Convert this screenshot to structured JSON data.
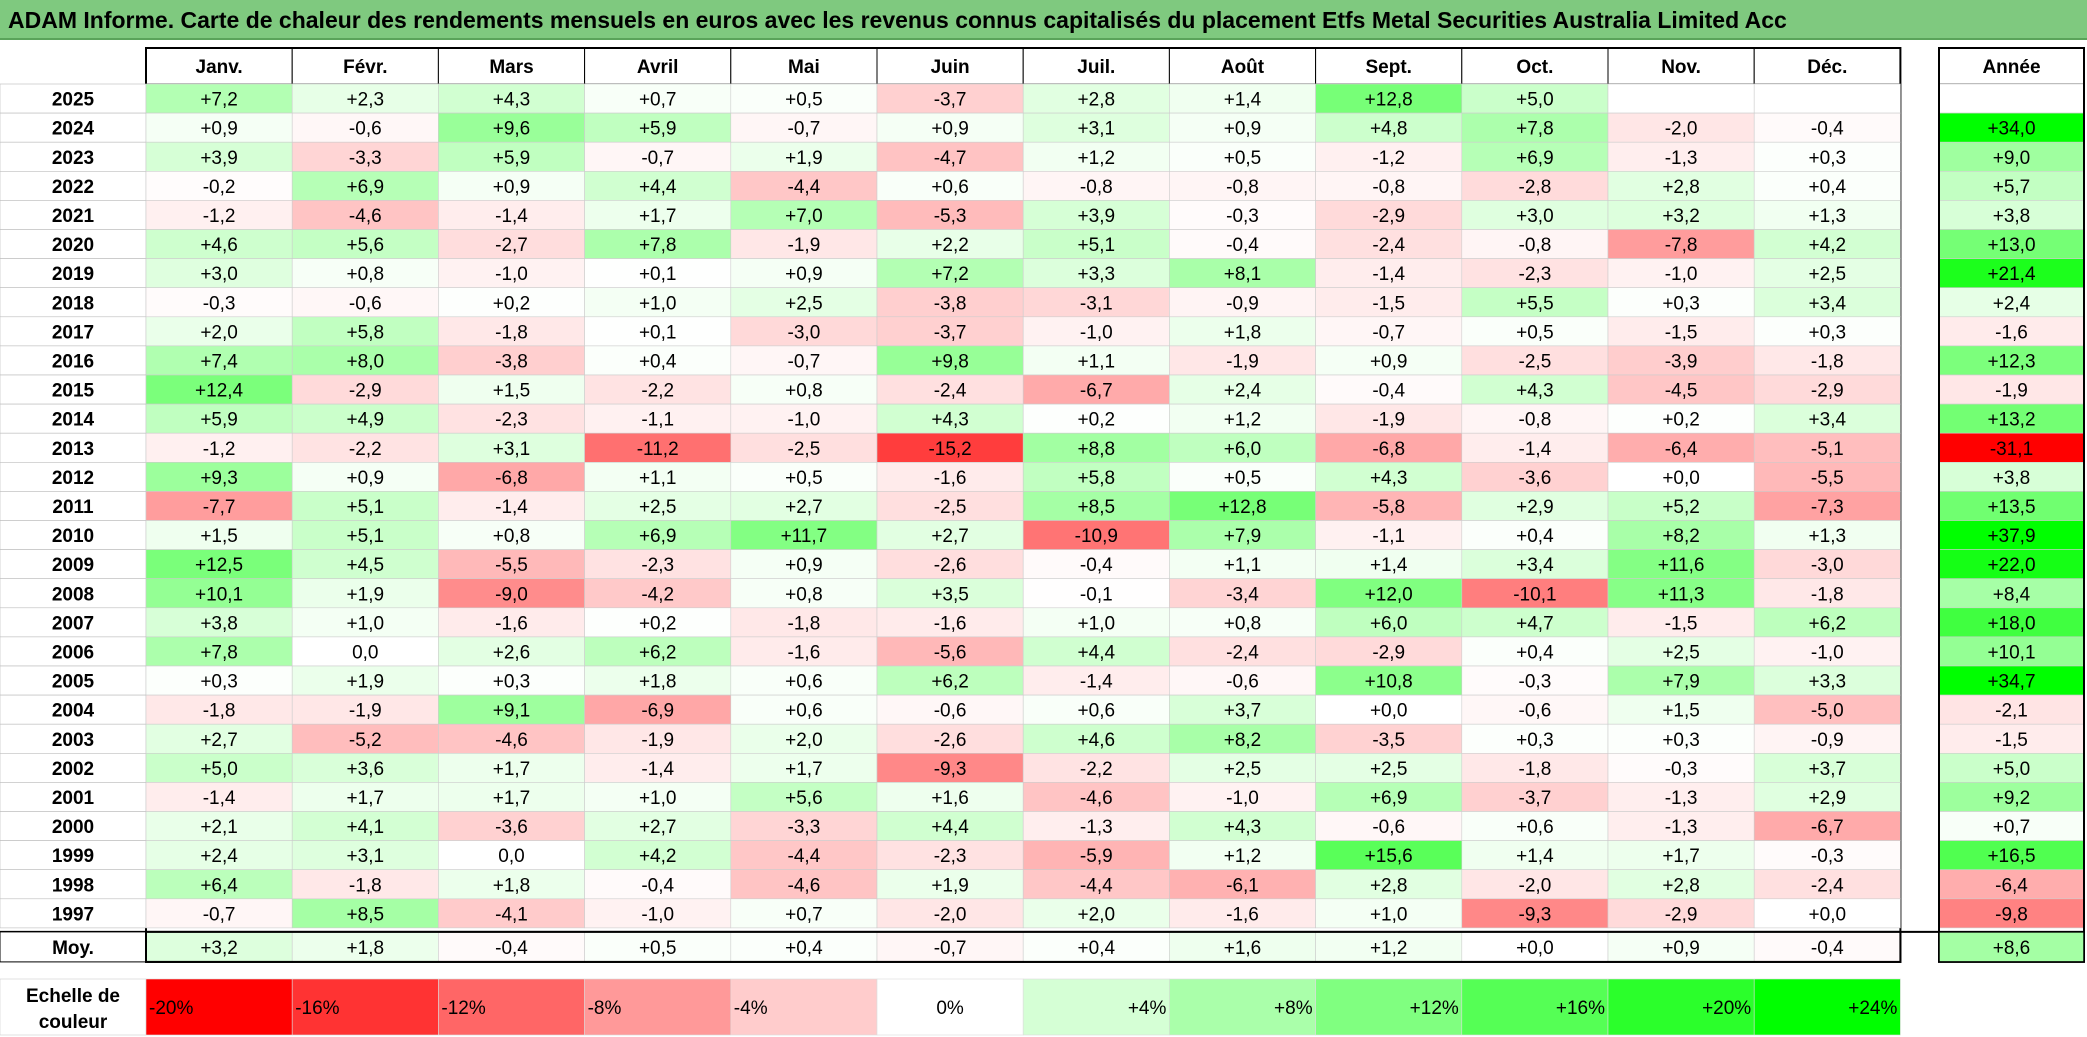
{
  "title": "ADAM Informe. Carte de chaleur des rendements mensuels en euros avec les revenus connus capitalisés du placement Etfs Metal Securities Australia Limited Acc",
  "chart_data": {
    "type": "heatmap",
    "months": [
      "Janv.",
      "Févr.",
      "Mars",
      "Avril",
      "Mai",
      "Juin",
      "Juil.",
      "Août",
      "Sept.",
      "Oct.",
      "Nov.",
      "Déc."
    ],
    "year_header": "Année",
    "rows": [
      {
        "year": "2025",
        "values": [
          "+7,2",
          "+2,3",
          "+4,3",
          "+0,7",
          "+0,5",
          "-3,7",
          "+2,8",
          "+1,4",
          "+12,8",
          "+5,0",
          "",
          ""
        ],
        "annual": ""
      },
      {
        "year": "2024",
        "values": [
          "+0,9",
          "-0,6",
          "+9,6",
          "+5,9",
          "-0,7",
          "+0,9",
          "+3,1",
          "+0,9",
          "+4,8",
          "+7,8",
          "-2,0",
          "-0,4"
        ],
        "annual": "+34,0"
      },
      {
        "year": "2023",
        "values": [
          "+3,9",
          "-3,3",
          "+5,9",
          "-0,7",
          "+1,9",
          "-4,7",
          "+1,2",
          "+0,5",
          "-1,2",
          "+6,9",
          "-1,3",
          "+0,3"
        ],
        "annual": "+9,0"
      },
      {
        "year": "2022",
        "values": [
          "-0,2",
          "+6,9",
          "+0,9",
          "+4,4",
          "-4,4",
          "+0,6",
          "-0,8",
          "-0,8",
          "-0,8",
          "-2,8",
          "+2,8",
          "+0,4"
        ],
        "annual": "+5,7"
      },
      {
        "year": "2021",
        "values": [
          "-1,2",
          "-4,6",
          "-1,4",
          "+1,7",
          "+7,0",
          "-5,3",
          "+3,9",
          "-0,3",
          "-2,9",
          "+3,0",
          "+3,2",
          "+1,3"
        ],
        "annual": "+3,8"
      },
      {
        "year": "2020",
        "values": [
          "+4,6",
          "+5,6",
          "-2,7",
          "+7,8",
          "-1,9",
          "+2,2",
          "+5,1",
          "-0,4",
          "-2,4",
          "-0,8",
          "-7,8",
          "+4,2"
        ],
        "annual": "+13,0"
      },
      {
        "year": "2019",
        "values": [
          "+3,0",
          "+0,8",
          "-1,0",
          "+0,1",
          "+0,9",
          "+7,2",
          "+3,3",
          "+8,1",
          "-1,4",
          "-2,3",
          "-1,0",
          "+2,5"
        ],
        "annual": "+21,4"
      },
      {
        "year": "2018",
        "values": [
          "-0,3",
          "-0,6",
          "+0,2",
          "+1,0",
          "+2,5",
          "-3,8",
          "-3,1",
          "-0,9",
          "-1,5",
          "+5,5",
          "+0,3",
          "+3,4"
        ],
        "annual": "+2,4"
      },
      {
        "year": "2017",
        "values": [
          "+2,0",
          "+5,8",
          "-1,8",
          "+0,1",
          "-3,0",
          "-3,7",
          "-1,0",
          "+1,8",
          "-0,7",
          "+0,5",
          "-1,5",
          "+0,3"
        ],
        "annual": "-1,6"
      },
      {
        "year": "2016",
        "values": [
          "+7,4",
          "+8,0",
          "-3,8",
          "+0,4",
          "-0,7",
          "+9,8",
          "+1,1",
          "-1,9",
          "+0,9",
          "-2,5",
          "-3,9",
          "-1,8"
        ],
        "annual": "+12,3"
      },
      {
        "year": "2015",
        "values": [
          "+12,4",
          "-2,9",
          "+1,5",
          "-2,2",
          "+0,8",
          "-2,4",
          "-6,7",
          "+2,4",
          "-0,4",
          "+4,3",
          "-4,5",
          "-2,9"
        ],
        "annual": "-1,9"
      },
      {
        "year": "2014",
        "values": [
          "+5,9",
          "+4,9",
          "-2,3",
          "-1,1",
          "-1,0",
          "+4,3",
          "+0,2",
          "+1,2",
          "-1,9",
          "-0,8",
          "+0,2",
          "+3,4"
        ],
        "annual": "+13,2"
      },
      {
        "year": "2013",
        "values": [
          "-1,2",
          "-2,2",
          "+3,1",
          "-11,2",
          "-2,5",
          "-15,2",
          "+8,8",
          "+6,0",
          "-6,8",
          "-1,4",
          "-6,4",
          "-5,1"
        ],
        "annual": "-31,1"
      },
      {
        "year": "2012",
        "values": [
          "+9,3",
          "+0,9",
          "-6,8",
          "+1,1",
          "+0,5",
          "-1,6",
          "+5,8",
          "+0,5",
          "+4,3",
          "-3,6",
          "+0,0",
          "-5,5"
        ],
        "annual": "+3,8"
      },
      {
        "year": "2011",
        "values": [
          "-7,7",
          "+5,1",
          "-1,4",
          "+2,5",
          "+2,7",
          "-2,5",
          "+8,5",
          "+12,8",
          "-5,8",
          "+2,9",
          "+5,2",
          "-7,3"
        ],
        "annual": "+13,5"
      },
      {
        "year": "2010",
        "values": [
          "+1,5",
          "+5,1",
          "+0,8",
          "+6,9",
          "+11,7",
          "+2,7",
          "-10,9",
          "+7,9",
          "-1,1",
          "+0,4",
          "+8,2",
          "+1,3"
        ],
        "annual": "+37,9"
      },
      {
        "year": "2009",
        "values": [
          "+12,5",
          "+4,5",
          "-5,5",
          "-2,3",
          "+0,9",
          "-2,6",
          "-0,4",
          "+1,1",
          "+1,4",
          "+3,4",
          "+11,6",
          "-3,0"
        ],
        "annual": "+22,0"
      },
      {
        "year": "2008",
        "values": [
          "+10,1",
          "+1,9",
          "-9,0",
          "-4,2",
          "+0,8",
          "+3,5",
          "-0,1",
          "-3,4",
          "+12,0",
          "-10,1",
          "+11,3",
          "-1,8"
        ],
        "annual": "+8,4"
      },
      {
        "year": "2007",
        "values": [
          "+3,8",
          "+1,0",
          "-1,6",
          "+0,2",
          "-1,8",
          "-1,6",
          "+1,0",
          "+0,8",
          "+6,0",
          "+4,7",
          "-1,5",
          "+6,2"
        ],
        "annual": "+18,0"
      },
      {
        "year": "2006",
        "values": [
          "+7,8",
          "0,0",
          "+2,6",
          "+6,2",
          "-1,6",
          "-5,6",
          "+4,4",
          "-2,4",
          "-2,9",
          "+0,4",
          "+2,5",
          "-1,0"
        ],
        "annual": "+10,1"
      },
      {
        "year": "2005",
        "values": [
          "+0,3",
          "+1,9",
          "+0,3",
          "+1,8",
          "+0,6",
          "+6,2",
          "-1,4",
          "-0,6",
          "+10,8",
          "-0,3",
          "+7,9",
          "+3,3"
        ],
        "annual": "+34,7"
      },
      {
        "year": "2004",
        "values": [
          "-1,8",
          "-1,9",
          "+9,1",
          "-6,9",
          "+0,6",
          "-0,6",
          "+0,6",
          "+3,7",
          "+0,0",
          "-0,6",
          "+1,5",
          "-5,0"
        ],
        "annual": "-2,1"
      },
      {
        "year": "2003",
        "values": [
          "+2,7",
          "-5,2",
          "-4,6",
          "-1,9",
          "+2,0",
          "-2,6",
          "+4,6",
          "+8,2",
          "-3,5",
          "+0,3",
          "+0,3",
          "-0,9"
        ],
        "annual": "-1,5"
      },
      {
        "year": "2002",
        "values": [
          "+5,0",
          "+3,6",
          "+1,7",
          "-1,4",
          "+1,7",
          "-9,3",
          "-2,2",
          "+2,5",
          "+2,5",
          "-1,8",
          "-0,3",
          "+3,7"
        ],
        "annual": "+5,0"
      },
      {
        "year": "2001",
        "values": [
          "-1,4",
          "+1,7",
          "+1,7",
          "+1,0",
          "+5,6",
          "+1,6",
          "-4,6",
          "-1,0",
          "+6,9",
          "-3,7",
          "-1,3",
          "+2,9"
        ],
        "annual": "+9,2"
      },
      {
        "year": "2000",
        "values": [
          "+2,1",
          "+4,1",
          "-3,6",
          "+2,7",
          "-3,3",
          "+4,4",
          "-1,3",
          "+4,3",
          "-0,6",
          "+0,6",
          "-1,3",
          "-6,7"
        ],
        "annual": "+0,7"
      },
      {
        "year": "1999",
        "values": [
          "+2,4",
          "+3,1",
          "0,0",
          "+4,2",
          "-4,4",
          "-2,3",
          "-5,9",
          "+1,2",
          "+15,6",
          "+1,4",
          "+1,7",
          "-0,3"
        ],
        "annual": "+16,5"
      },
      {
        "year": "1998",
        "values": [
          "+6,4",
          "-1,8",
          "+1,8",
          "-0,4",
          "-4,6",
          "+1,9",
          "-4,4",
          "-6,1",
          "+2,8",
          "-2,0",
          "+2,8",
          "-2,4"
        ],
        "annual": "-6,4"
      },
      {
        "year": "1997",
        "values": [
          "-0,7",
          "+8,5",
          "-4,1",
          "-1,0",
          "+0,7",
          "-2,0",
          "+2,0",
          "-1,6",
          "+1,0",
          "-9,3",
          "-2,9",
          "+0,0"
        ],
        "annual": "-9,8"
      }
    ],
    "average": {
      "label": "Moy.",
      "values": [
        "+3,2",
        "+1,8",
        "-0,4",
        "+0,5",
        "+0,4",
        "-0,7",
        "+0,4",
        "+1,6",
        "+1,2",
        "+0,0",
        "+0,9",
        "-0,4"
      ],
      "annual": "+8,6"
    },
    "scale": {
      "label_line1": "Echelle de",
      "label_line2": "couleur",
      "items": [
        {
          "label": "-20%",
          "value": -20
        },
        {
          "label": "-16%",
          "value": -16
        },
        {
          "label": "-12%",
          "value": -12
        },
        {
          "label": "-8%",
          "value": -8
        },
        {
          "label": "-4%",
          "value": -4
        },
        {
          "label": "0%",
          "value": 0
        },
        {
          "label": "+4%",
          "value": 4
        },
        {
          "label": "+8%",
          "value": 8
        },
        {
          "label": "+12%",
          "value": 12
        },
        {
          "label": "+16%",
          "value": 16
        },
        {
          "label": "+20%",
          "value": 20
        },
        {
          "label": "+24%",
          "value": 24
        }
      ]
    },
    "colors": {
      "title_bg": "#7fc97f",
      "negative_max": "#ff0000",
      "neutral": "#ffffff",
      "positive_max": "#00ff00",
      "border": "#000000"
    }
  }
}
